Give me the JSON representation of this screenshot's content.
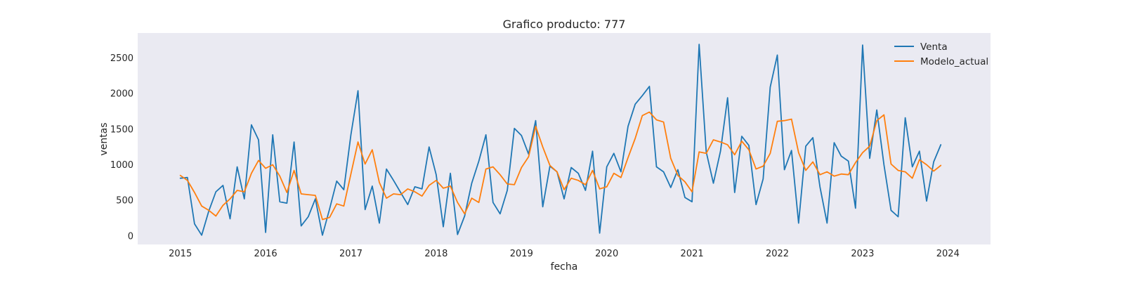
{
  "chart_data": {
    "type": "line",
    "title": "Grafico producto: 777",
    "xlabel": "fecha",
    "ylabel": "ventas",
    "x_start": "2015-01",
    "x_step": "month",
    "xlim": [
      "2014-07",
      "2024-07"
    ],
    "ylim": [
      -120,
      2850
    ],
    "x_ticks": [
      "2015",
      "2016",
      "2017",
      "2018",
      "2019",
      "2020",
      "2021",
      "2022",
      "2023",
      "2024"
    ],
    "y_ticks": [
      0,
      500,
      1000,
      1500,
      2000,
      2500
    ],
    "y_tick_labels": [
      "0",
      "500",
      "1000",
      "1500",
      "2000",
      "2500"
    ],
    "grid": false,
    "background": "#eaeaf2",
    "legend": {
      "position": "top-right"
    },
    "series": [
      {
        "name": "Venta",
        "color": "#1f77b4",
        "values": [
          810,
          820,
          170,
          10,
          350,
          620,
          710,
          240,
          970,
          520,
          1560,
          1350,
          50,
          1420,
          480,
          460,
          1320,
          140,
          270,
          520,
          10,
          380,
          770,
          650,
          1420,
          2040,
          370,
          700,
          180,
          940,
          780,
          610,
          440,
          690,
          660,
          1250,
          860,
          130,
          880,
          20,
          280,
          740,
          1050,
          1420,
          470,
          310,
          640,
          1510,
          1410,
          1150,
          1620,
          410,
          980,
          900,
          520,
          960,
          880,
          640,
          1190,
          40,
          970,
          1160,
          900,
          1540,
          1850,
          1970,
          2100,
          970,
          900,
          680,
          930,
          540,
          480,
          2690,
          1180,
          740,
          1190,
          1940,
          610,
          1400,
          1270,
          440,
          800,
          2090,
          2540,
          930,
          1200,
          180,
          1260,
          1380,
          690,
          180,
          1310,
          1120,
          1050,
          390,
          2680,
          1090,
          1770,
          1000,
          360,
          270,
          1660,
          970,
          1190,
          490,
          1040,
          1280
        ]
      },
      {
        "name": "Modelo_actual",
        "color": "#ff7f0e",
        "values": [
          850,
          780,
          610,
          420,
          360,
          280,
          430,
          520,
          640,
          620,
          880,
          1060,
          950,
          1000,
          840,
          610,
          920,
          590,
          580,
          570,
          230,
          260,
          450,
          420,
          870,
          1320,
          1010,
          1210,
          750,
          530,
          590,
          580,
          660,
          620,
          560,
          710,
          780,
          670,
          700,
          470,
          310,
          530,
          470,
          940,
          970,
          860,
          730,
          720,
          960,
          1110,
          1540,
          1250,
          990,
          900,
          650,
          810,
          780,
          720,
          920,
          660,
          690,
          880,
          820,
          1100,
          1370,
          1690,
          1740,
          1630,
          1600,
          1090,
          850,
          760,
          620,
          1180,
          1160,
          1350,
          1320,
          1280,
          1140,
          1330,
          1210,
          940,
          980,
          1160,
          1610,
          1620,
          1640,
          1170,
          920,
          1040,
          860,
          900,
          840,
          870,
          860,
          1030,
          1170,
          1260,
          1620,
          1700,
          1010,
          920,
          900,
          810,
          1070,
          1000,
          910,
          990
        ]
      }
    ]
  }
}
